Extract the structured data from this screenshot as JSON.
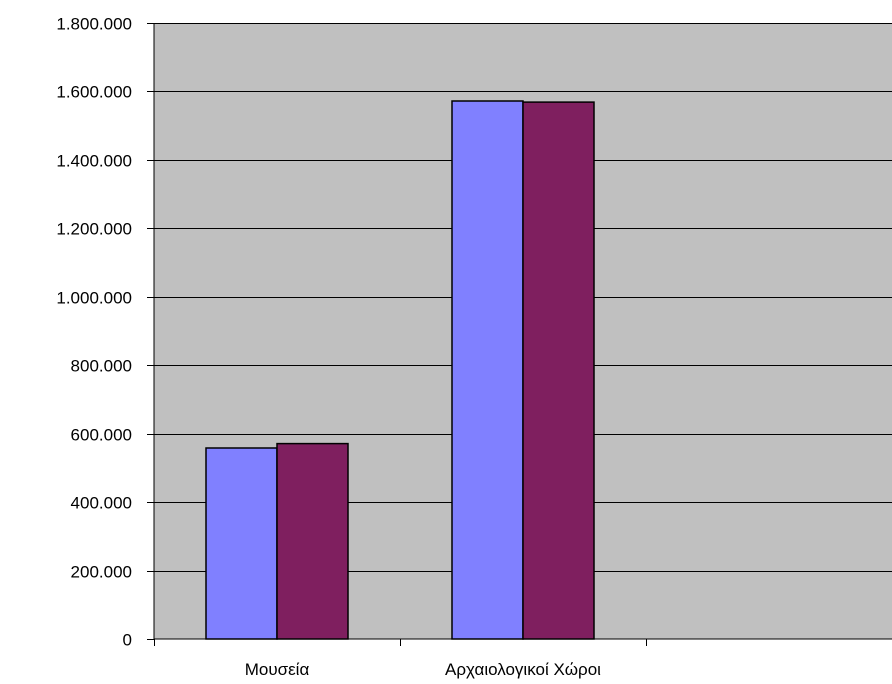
{
  "chart_data": {
    "type": "bar",
    "categories": [
      "Μουσεία",
      "Αρχαιολογικοί Χώροι",
      ""
    ],
    "series": [
      {
        "values": [
          558000,
          1572000,
          null
        ]
      },
      {
        "values": [
          571000,
          1569000,
          null
        ]
      }
    ],
    "ylim": [
      0,
      1800000
    ],
    "yticks": [
      0,
      200000,
      400000,
      600000,
      800000,
      1000000,
      1200000,
      1400000,
      1600000,
      1800000
    ],
    "ytick_labels": [
      "0",
      "200.000",
      "400.000",
      "600.000",
      "800.000",
      "1.000.000",
      "1.200.000",
      "1.400.000",
      "1.600.000",
      "1.800.000"
    ],
    "grid": true,
    "legend": "none",
    "colors": {
      "plot_background": "#C0C0C0",
      "series": [
        "#8080FF",
        "#7F1F5F"
      ],
      "gridline": "#000000",
      "bar_outline": "#000000"
    }
  }
}
